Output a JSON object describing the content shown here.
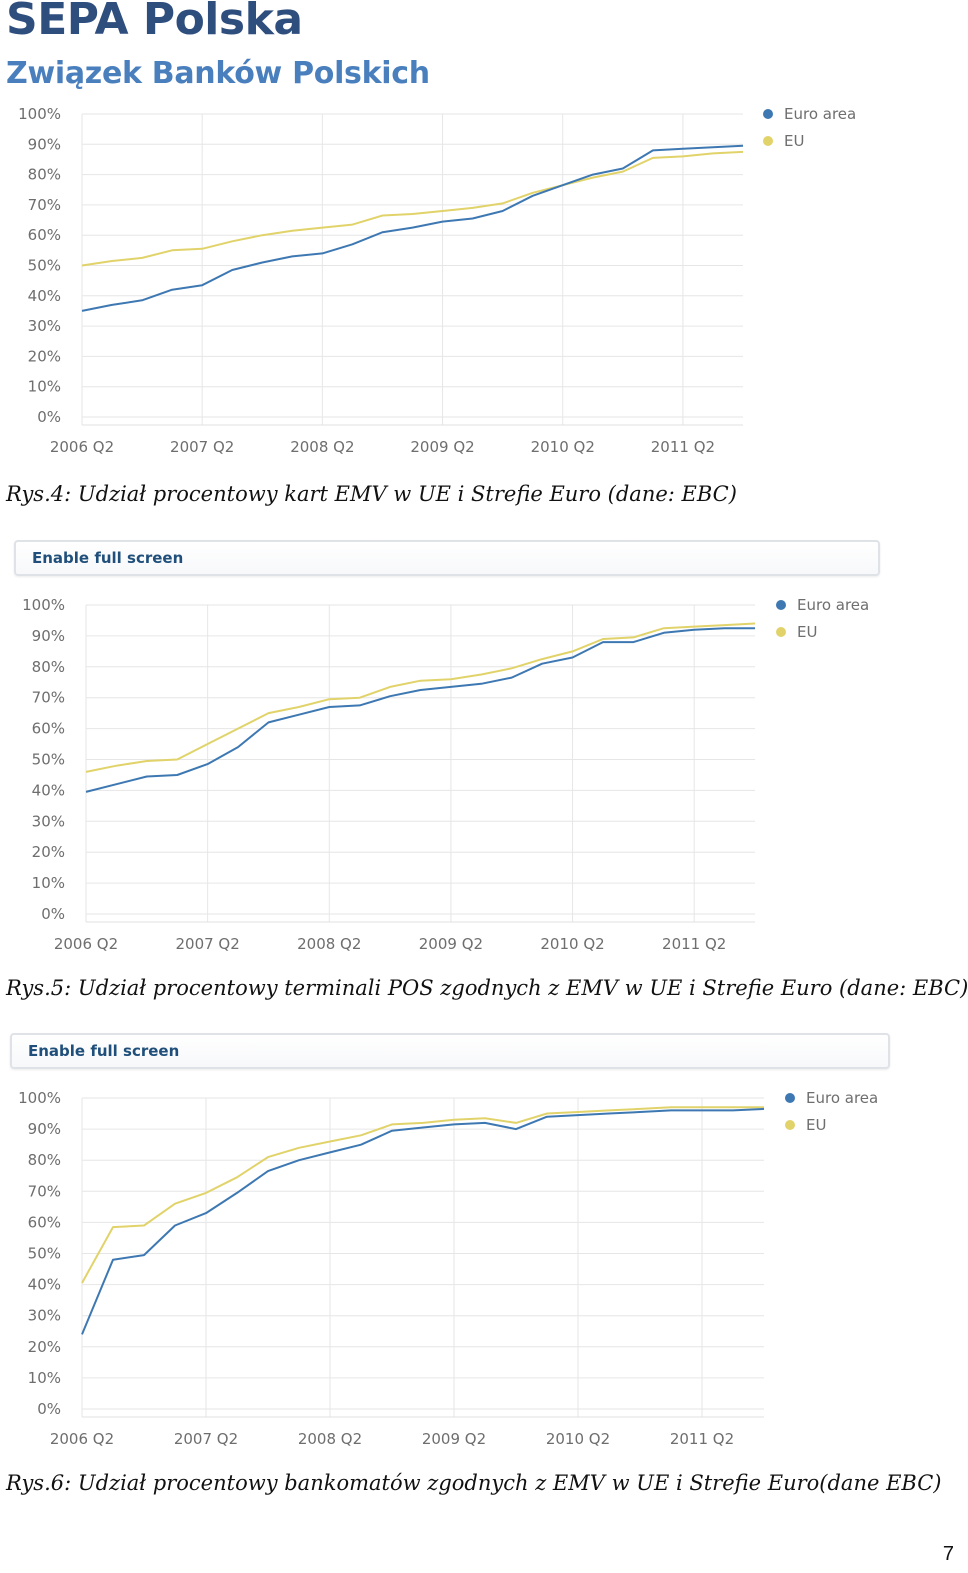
{
  "header": {
    "title": "SEPA Polska",
    "subtitle": "Związek Banków Polskich"
  },
  "fullscreen_label": "Enable full screen",
  "captions": [
    "Rys.4: Udział procentowy kart EMV w UE i Strefie Euro (dane: EBC)",
    "Rys.5: Udział procentowy terminali POS zgodnych z EMV w UE i Strefie Euro (dane: EBC)",
    "Rys.6: Udział procentowy bankomatów zgodnych z EMV w UE i Strefie Euro(dane EBC)"
  ],
  "page_number": "7",
  "chart_data": [
    {
      "type": "line",
      "ylim": [
        0,
        100
      ],
      "yticks": [
        "0%",
        "10%",
        "20%",
        "30%",
        "40%",
        "50%",
        "60%",
        "70%",
        "80%",
        "90%",
        "100%"
      ],
      "xticks": [
        "2006 Q2",
        "2007 Q2",
        "2008 Q2",
        "2009 Q2",
        "2010 Q2",
        "2011 Q2"
      ],
      "xtick_index": [
        0,
        4,
        8,
        12,
        16,
        20
      ],
      "grid": true,
      "legend": "top-right",
      "series": [
        {
          "name": "Euro area",
          "color": "#3e78b2",
          "values": [
            35,
            37,
            38.5,
            42,
            43.5,
            48.5,
            51,
            53,
            54,
            57,
            61,
            62.5,
            64.5,
            65.5,
            68,
            73,
            76.5,
            80,
            82,
            88,
            88.5,
            89,
            89.5
          ]
        },
        {
          "name": "EU",
          "color": "#e1d36a",
          "values": [
            50,
            51.5,
            52.5,
            55,
            55.5,
            58,
            60,
            61.5,
            62.5,
            63.5,
            66.5,
            67,
            68,
            69,
            70.5,
            74,
            76.5,
            79,
            81,
            85.5,
            86,
            87,
            87.5
          ]
        }
      ]
    },
    {
      "type": "line",
      "ylim": [
        0,
        100
      ],
      "yticks": [
        "0%",
        "10%",
        "20%",
        "30%",
        "40%",
        "50%",
        "60%",
        "70%",
        "80%",
        "90%",
        "100%"
      ],
      "xticks": [
        "2006 Q2",
        "2007 Q2",
        "2008 Q2",
        "2009 Q2",
        "2010 Q2",
        "2011 Q2"
      ],
      "xtick_index": [
        0,
        4,
        8,
        12,
        16,
        20
      ],
      "grid": true,
      "legend": "top-right",
      "series": [
        {
          "name": "Euro area",
          "color": "#3e78b2",
          "values": [
            39.5,
            42,
            44.5,
            45,
            48.5,
            54,
            62,
            64.5,
            67,
            67.5,
            70.5,
            72.5,
            73.5,
            74.5,
            76.5,
            81,
            83,
            88,
            88,
            91,
            92,
            92.5,
            92.5
          ]
        },
        {
          "name": "EU",
          "color": "#e1d36a",
          "values": [
            46,
            48,
            49.5,
            50,
            55,
            60,
            65,
            67,
            69.5,
            70,
            73.5,
            75.5,
            76,
            77.5,
            79.5,
            82.5,
            85,
            89,
            89.5,
            92.5,
            93,
            93.5,
            94
          ]
        }
      ]
    },
    {
      "type": "line",
      "ylim": [
        0,
        100
      ],
      "yticks": [
        "0%",
        "10%",
        "20%",
        "30%",
        "40%",
        "50%",
        "60%",
        "70%",
        "80%",
        "90%",
        "100%"
      ],
      "xticks": [
        "2006 Q2",
        "2007 Q2",
        "2008 Q2",
        "2009 Q2",
        "2010 Q2",
        "2011 Q2"
      ],
      "xtick_index": [
        0,
        4,
        8,
        12,
        16,
        20
      ],
      "grid": true,
      "legend": "top-right",
      "series": [
        {
          "name": "Euro area",
          "color": "#3e78b2",
          "values": [
            24,
            48,
            49.5,
            59,
            63,
            69.5,
            76.5,
            80,
            82.5,
            85,
            89.5,
            90.5,
            91.5,
            92,
            90,
            94,
            94.5,
            95,
            95.5,
            96,
            96,
            96,
            96.5
          ]
        },
        {
          "name": "EU",
          "color": "#e1d36a",
          "values": [
            40.5,
            58.5,
            59,
            66,
            69.5,
            74.5,
            81,
            84,
            86,
            88,
            91.5,
            92,
            93,
            93.5,
            92,
            95,
            95.5,
            96,
            96.5,
            97,
            97,
            97,
            97
          ]
        }
      ]
    }
  ]
}
